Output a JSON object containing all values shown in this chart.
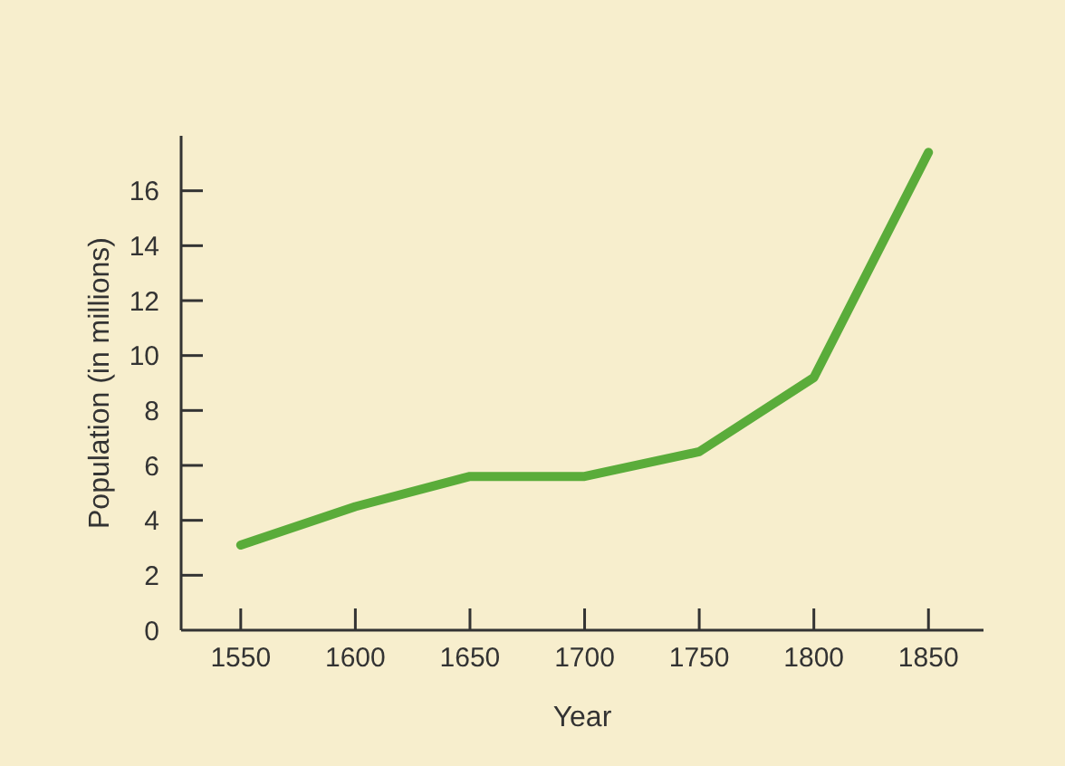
{
  "chart_data": {
    "type": "line",
    "xlabel": "Year",
    "ylabel": "Population (in millions)",
    "x": [
      1550,
      1600,
      1650,
      1700,
      1750,
      1800,
      1850
    ],
    "series": [
      {
        "color": "#5aac3a",
        "values": [
          3.1,
          4.5,
          5.6,
          5.6,
          6.5,
          9.2,
          17.4
        ]
      }
    ],
    "xlim": [
      1524,
      1874
    ],
    "xticks": [
      1550,
      1600,
      1650,
      1700,
      1750,
      1800,
      1850
    ],
    "ylim": [
      0,
      18
    ],
    "yticks": [
      0,
      2,
      4,
      6,
      8,
      10,
      12,
      14,
      16
    ],
    "marker": "none",
    "line_style": "solid"
  }
}
